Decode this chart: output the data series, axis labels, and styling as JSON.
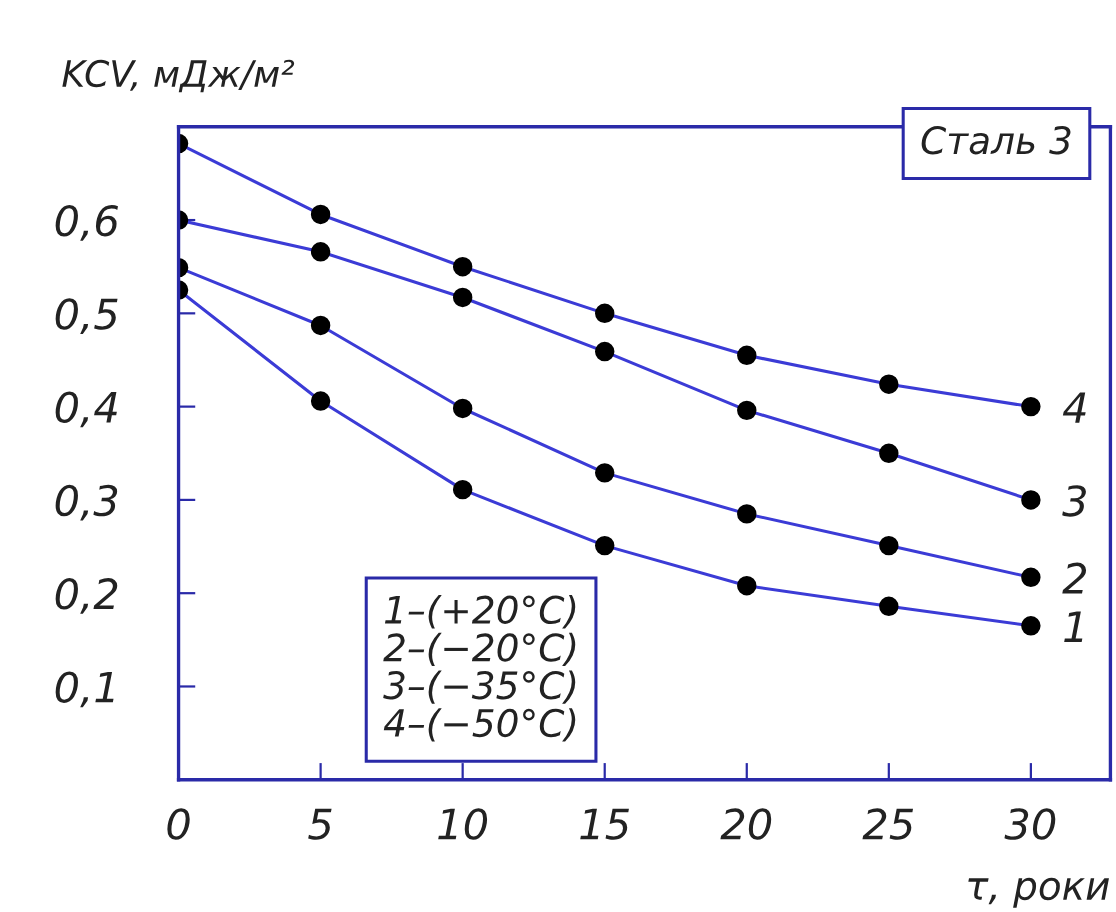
{
  "chart_data": {
    "type": "line",
    "ylabel": "KCV, мДж/м²",
    "xlabel": "τ, роки",
    "x": [
      0,
      5,
      10,
      15,
      20,
      25,
      30
    ],
    "series": [
      {
        "name": "1",
        "color": "#3b3bd6",
        "values": [
          0.525,
          0.406,
          0.311,
          0.251,
          0.208,
          0.186,
          0.165
        ]
      },
      {
        "name": "2",
        "color": "#3b3bd6",
        "values": [
          0.549,
          0.487,
          0.398,
          0.329,
          0.285,
          0.251,
          0.217
        ]
      },
      {
        "name": "3",
        "color": "#3b3bd6",
        "values": [
          0.6,
          0.566,
          0.517,
          0.459,
          0.396,
          0.35,
          0.3
        ]
      },
      {
        "name": "4",
        "color": "#3b3bd6",
        "values": [
          0.682,
          0.606,
          0.55,
          0.5,
          0.455,
          0.424,
          0.4
        ]
      }
    ],
    "xlim": [
      0,
      32.8
    ],
    "ylim": [
      0,
      0.7
    ],
    "xticks": [
      0,
      5,
      10,
      15,
      20,
      25,
      30
    ],
    "yticks": [
      {
        "value": 0.1,
        "label": "0,1"
      },
      {
        "value": 0.2,
        "label": "0,2"
      },
      {
        "value": 0.3,
        "label": "0,3"
      },
      {
        "value": 0.4,
        "label": "0,4"
      },
      {
        "value": 0.5,
        "label": "0,5"
      },
      {
        "value": 0.6,
        "label": "0,6"
      }
    ],
    "marker": "circle",
    "line_style": "solid",
    "grid": false,
    "legend": false,
    "annotations": [
      "1–(+20°C)\n2–(−20°C)\n3–(−35°C)\n4–(−50°C)",
      "Сталь 3"
    ]
  }
}
